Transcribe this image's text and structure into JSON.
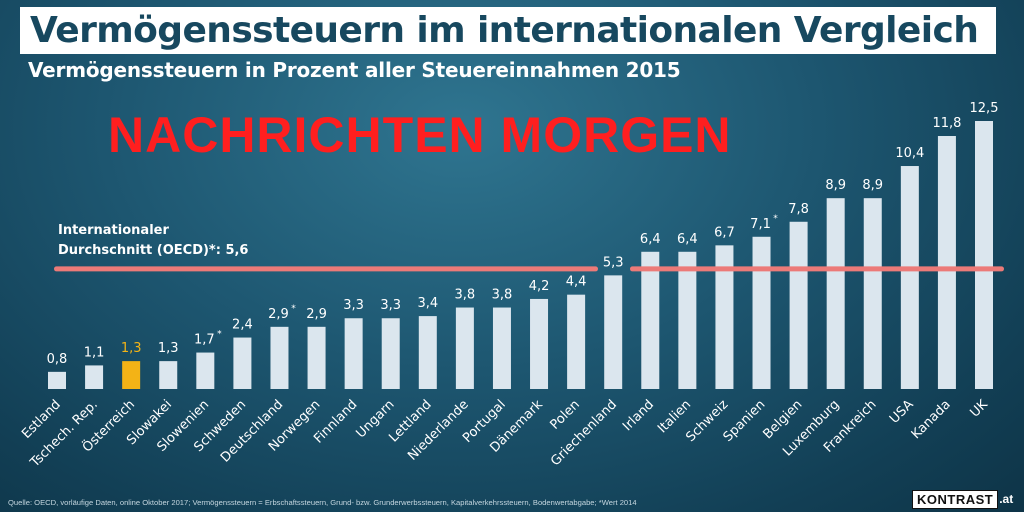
{
  "title": "Vermögenssteuern im internationalen Vergleich",
  "subtitle": "Vermögenssteuern in Prozent aller Steuereinnahmen 2015",
  "watermark": "NACHRICHTEN MORGEN",
  "oecd_label_line1": "Internationaler",
  "oecd_label_line2": "Durchschnitt (OECD)*: 5,6",
  "source": "Quelle: OECD, vorläufige Daten, online Oktober 2017; Vermögenssteuern = Erbschaftssteuern, Grund- bzw. Grunderwerbssteuern, Kapitalverkehrssteuern, Bodenwertabgabe; *Wert 2014",
  "logo_text": "KONTRAST",
  "logo_suffix": ".at",
  "colors": {
    "bar": "#dbe6ee",
    "highlight_bar": "#f3b316",
    "oecd_line": "#ec7a78",
    "value_label": "#ffffff",
    "highlight_label": "#f3b316"
  },
  "chart_data": {
    "type": "bar",
    "categories": [
      "Estland",
      "Tschech. Rep.",
      "Österreich",
      "Slowakei",
      "Slowenien",
      "Schweden",
      "Deutschland",
      "Norwegen",
      "Finnland",
      "Ungarn",
      "Lettland",
      "Niederlande",
      "Portugal",
      "Dänemark",
      "Polen",
      "Griechenland",
      "Irland",
      "Italien",
      "Schweiz",
      "Spanien",
      "Belgien",
      "Luxemburg",
      "Frankreich",
      "USA",
      "Kanada",
      "UK"
    ],
    "values": [
      0.8,
      1.1,
      1.3,
      1.3,
      1.7,
      2.4,
      2.9,
      2.9,
      3.3,
      3.3,
      3.4,
      3.8,
      3.8,
      4.2,
      4.4,
      5.3,
      6.4,
      6.4,
      6.7,
      7.1,
      7.8,
      8.9,
      8.9,
      10.4,
      11.8,
      12.5
    ],
    "value_labels": [
      "0,8",
      "1,1",
      "1,3",
      "1,3",
      "1,7*",
      "2,4",
      "2,9*",
      "2,9",
      "3,3",
      "3,3",
      "3,4",
      "3,8",
      "3,8",
      "4,2",
      "4,4",
      "5,3",
      "6,4",
      "6,4",
      "6,7",
      "7,1*",
      "7,8",
      "8,9",
      "8,9",
      "10,4",
      "11,8",
      "12,5"
    ],
    "highlight": "Österreich",
    "reference_line": {
      "value": 5.6
    },
    "ylim": [
      0,
      12.5
    ]
  }
}
